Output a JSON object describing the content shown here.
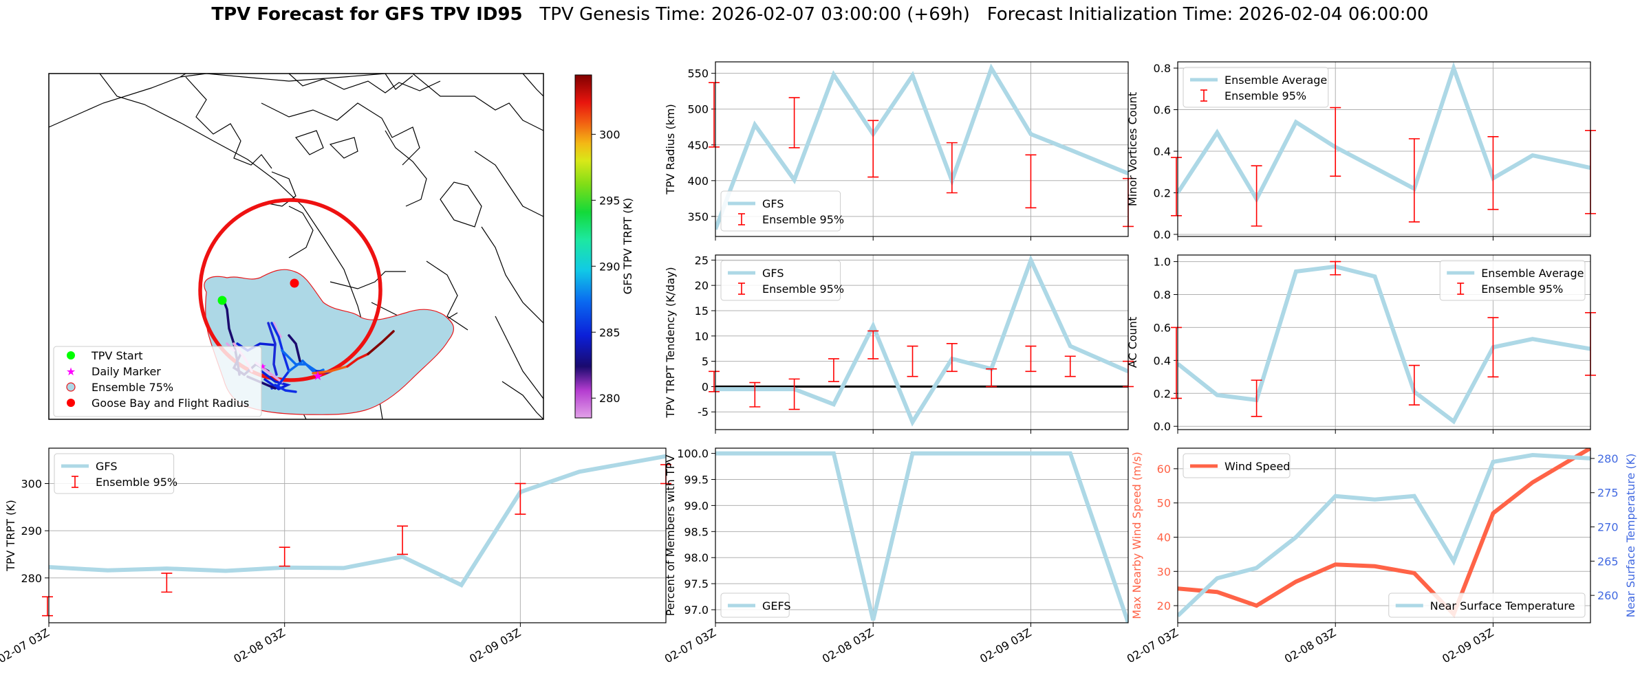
{
  "figure": {
    "title_bold": "TPV Forecast for GFS TPV ID95",
    "title_rest": "   TPV Genesis Time: 2026-02-07 03:00:00 (+69h)   Forecast Initialization Time: 2026-02-04 06:00:00",
    "x_ticks": [
      "02-07 03Z",
      "02-08 03Z",
      "02-09 03Z"
    ],
    "colors": {
      "gfs_line": "#add8e6",
      "error_bar": "#ff0000",
      "wind": "#ff6347",
      "temp_axis": "#4169e1",
      "zero_line": "#000000"
    }
  },
  "map": {
    "legend": [
      "TPV Start",
      "Daily Marker",
      "Ensemble 75%",
      "Goose Bay and Flight Radius"
    ],
    "colorbar": {
      "label": "GFS TPV TRPT (K)",
      "ticks": [
        280,
        285,
        290,
        295,
        300
      ],
      "range": [
        278.5,
        304.5
      ],
      "colormap": "gist_ncar-like"
    },
    "icons": [
      "tpv-start-circle-icon",
      "daily-marker-star-icon",
      "ensemble-patch-icon",
      "goose-bay-circle-icon"
    ]
  },
  "chart_data": [
    {
      "id": "radius",
      "type": "line",
      "ylabel": "TPV Radius (km)",
      "ylim": [
        322,
        566
      ],
      "yticks": [
        350,
        400,
        450,
        500,
        550
      ],
      "xlim": [
        0,
        10.47
      ],
      "grid": true,
      "legend": {
        "placement": "bottom-left",
        "entries": [
          "GFS",
          "Ensemble 95%"
        ]
      },
      "series": [
        {
          "name": "GFS",
          "x": [
            0,
            1,
            2,
            3,
            4,
            5,
            6,
            7,
            8,
            9,
            10.47
          ],
          "y": [
            332,
            478,
            401,
            548,
            465,
            547,
            400,
            557,
            465,
            443,
            410
          ]
        }
      ],
      "error_bars": [
        {
          "x": -0.25,
          "low": 447,
          "high": 537
        },
        {
          "x": 2,
          "low": 446,
          "high": 516
        },
        {
          "x": 4,
          "low": 405,
          "high": 484
        },
        {
          "x": 6,
          "low": 383,
          "high": 453
        },
        {
          "x": 8,
          "low": 362,
          "high": 436
        },
        {
          "x": 10.47,
          "low": 336,
          "high": 403
        }
      ]
    },
    {
      "id": "minor",
      "type": "line",
      "ylabel": "Minor Vortices Count",
      "ylim": [
        -0.01,
        0.83
      ],
      "yticks": [
        0.0,
        0.2,
        0.4,
        0.6,
        0.8
      ],
      "xlim": [
        0,
        10.47
      ],
      "grid": true,
      "legend": {
        "placement": "top-left",
        "entries": [
          "Ensemble Average",
          "Ensemble 95%"
        ]
      },
      "series": [
        {
          "name": "Ensemble Average",
          "x": [
            0,
            1,
            2,
            3,
            4,
            5,
            6,
            7,
            8,
            9,
            10,
            10.47
          ],
          "y": [
            0.2,
            0.49,
            0.17,
            0.54,
            0.42,
            0.32,
            0.22,
            0.8,
            0.27,
            0.38,
            0.34,
            0.32
          ]
        }
      ],
      "error_bars": [
        {
          "x": -0.25,
          "low": 0.09,
          "high": 0.37
        },
        {
          "x": 2,
          "low": 0.04,
          "high": 0.33
        },
        {
          "x": 4,
          "low": 0.28,
          "high": 0.61
        },
        {
          "x": 6,
          "low": 0.06,
          "high": 0.46
        },
        {
          "x": 8,
          "low": 0.12,
          "high": 0.47
        },
        {
          "x": 10.47,
          "low": 0.1,
          "high": 0.5
        }
      ]
    },
    {
      "id": "tendency",
      "type": "line",
      "ylabel": "TPV TRPT Tendency (K/day)",
      "ylim": [
        -8.5,
        26
      ],
      "yticks": [
        -5,
        0,
        5,
        10,
        15,
        20,
        25
      ],
      "xlim": [
        0,
        10.47
      ],
      "grid": true,
      "zero_line": true,
      "legend": {
        "placement": "top-left",
        "entries": [
          "GFS",
          "Ensemble 95%"
        ]
      },
      "series": [
        {
          "name": "GFS",
          "x": [
            0,
            1,
            2,
            3,
            4,
            5,
            6,
            7,
            8,
            9,
            10.47
          ],
          "y": [
            -0.5,
            -0.5,
            -0.5,
            -3.5,
            12,
            -7,
            5.5,
            3.5,
            25,
            8,
            3
          ]
        }
      ],
      "error_bars": [
        {
          "x": -0.25,
          "low": -1,
          "high": 3
        },
        {
          "x": 1,
          "low": -4,
          "high": 0.8
        },
        {
          "x": 2,
          "low": -4.5,
          "high": 1.5
        },
        {
          "x": 3,
          "low": 1,
          "high": 5.5
        },
        {
          "x": 4,
          "low": 5.5,
          "high": 11
        },
        {
          "x": 5,
          "low": 2,
          "high": 8
        },
        {
          "x": 6,
          "low": 3,
          "high": 8.5
        },
        {
          "x": 7,
          "low": 0,
          "high": 3.5
        },
        {
          "x": 8,
          "low": 3,
          "high": 8
        },
        {
          "x": 9,
          "low": 2,
          "high": 6
        },
        {
          "x": 10.47,
          "low": 0,
          "high": 5
        }
      ]
    },
    {
      "id": "ac",
      "type": "line",
      "ylabel": "AC Count",
      "ylim": [
        -0.02,
        1.04
      ],
      "yticks": [
        0.0,
        0.2,
        0.4,
        0.6,
        0.8,
        1.0
      ],
      "xlim": [
        0,
        10.47
      ],
      "grid": true,
      "legend": {
        "placement": "top-right",
        "entries": [
          "Ensemble Average",
          "Ensemble 95%"
        ]
      },
      "series": [
        {
          "name": "Ensemble Average",
          "x": [
            0,
            1,
            2,
            3,
            4,
            5,
            6,
            7,
            8,
            9,
            10.47
          ],
          "y": [
            0.38,
            0.19,
            0.16,
            0.94,
            0.97,
            0.91,
            0.21,
            0.03,
            0.48,
            0.53,
            0.47
          ]
        }
      ],
      "error_bars": [
        {
          "x": -0.25,
          "low": 0.17,
          "high": 0.6
        },
        {
          "x": 2,
          "low": 0.06,
          "high": 0.28
        },
        {
          "x": 4,
          "low": 0.92,
          "high": 1.0
        },
        {
          "x": 6,
          "low": 0.13,
          "high": 0.37
        },
        {
          "x": 8,
          "low": 0.3,
          "high": 0.66
        },
        {
          "x": 10.47,
          "low": 0.31,
          "high": 0.69
        }
      ]
    },
    {
      "id": "trpt",
      "type": "line",
      "ylabel": "TPV TRPT (K)",
      "ylim": [
        270.5,
        307.5
      ],
      "yticks": [
        280,
        290,
        300
      ],
      "xlim": [
        0,
        10.47
      ],
      "grid": true,
      "legend": {
        "placement": "top-left",
        "entries": [
          "GFS",
          "Ensemble 95%"
        ]
      },
      "series": [
        {
          "name": "GFS",
          "x": [
            0,
            1,
            2,
            3,
            4,
            5,
            6,
            7,
            8,
            9,
            10.47
          ],
          "y": [
            282.3,
            281.6,
            282.0,
            281.5,
            282.2,
            282.1,
            284.5,
            278.5,
            298.2,
            302.5,
            305.8
          ]
        }
      ],
      "error_bars": [
        {
          "x": -0.25,
          "low": 272,
          "high": 276
        },
        {
          "x": 2,
          "low": 277,
          "high": 281
        },
        {
          "x": 4,
          "low": 282.5,
          "high": 286.5
        },
        {
          "x": 6,
          "low": 285,
          "high": 291
        },
        {
          "x": 8,
          "low": 293.5,
          "high": 300
        },
        {
          "x": 10.47,
          "low": 300,
          "high": 304
        }
      ]
    },
    {
      "id": "percent",
      "type": "line",
      "ylabel": "Percent of Members with TPV",
      "ylim": [
        96.75,
        100.1
      ],
      "yticks": [
        97.0,
        97.5,
        98.0,
        98.5,
        99.0,
        99.5,
        100.0
      ],
      "xlim": [
        0,
        10.47
      ],
      "grid": true,
      "legend": {
        "placement": "bottom-left",
        "entries": [
          "GEFS"
        ]
      },
      "series": [
        {
          "name": "GEFS",
          "x": [
            0,
            1,
            2,
            3,
            4,
            5,
            6,
            7,
            8,
            9,
            10.47
          ],
          "y": [
            100,
            100,
            100,
            100,
            96.8,
            100,
            100,
            100,
            100,
            100,
            96.75
          ]
        }
      ]
    },
    {
      "id": "wind",
      "type": "line",
      "ylabel": "Max Nearby Wind Speed (m/s)",
      "ylabel_right": "Near Surface Temperature (K)",
      "ylim": [
        15,
        66
      ],
      "yticks": [
        20,
        30,
        40,
        50,
        60
      ],
      "ylim_right": [
        256,
        281.5
      ],
      "yticks_right": [
        260,
        265,
        270,
        275,
        280
      ],
      "xlim": [
        0,
        10.47
      ],
      "grid": true,
      "legend": {
        "placement": "top-left / bottom-right",
        "entries": [
          "Wind Speed",
          "Near Surface Temperature"
        ]
      },
      "series": [
        {
          "name": "Wind Speed",
          "axis": "left",
          "x": [
            0,
            1,
            2,
            3,
            4,
            5,
            6,
            7,
            8,
            9,
            10.47
          ],
          "y": [
            25,
            24,
            20,
            27,
            32,
            31.5,
            29.5,
            17.5,
            47,
            56,
            66
          ]
        },
        {
          "name": "Near Surface Temperature",
          "axis": "right",
          "x": [
            0,
            1,
            2,
            3,
            4,
            5,
            6,
            7,
            8,
            9,
            10.47
          ],
          "y": [
            257,
            262.5,
            264,
            268.5,
            274.5,
            274,
            274.5,
            265,
            279.5,
            280.5,
            280
          ]
        }
      ]
    }
  ]
}
